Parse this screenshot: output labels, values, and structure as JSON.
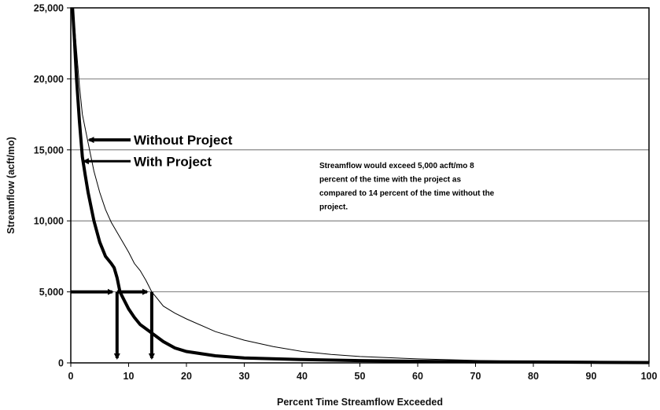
{
  "chart_data": {
    "type": "line",
    "title": "",
    "xlabel": "Percent Time Streamflow Exceeded",
    "ylabel": "Streamflow (acft/mo)",
    "xlim": [
      0,
      100
    ],
    "ylim": [
      0,
      25000
    ],
    "x_ticks": [
      "0",
      "10",
      "20",
      "30",
      "40",
      "50",
      "60",
      "70",
      "80",
      "90",
      "100"
    ],
    "y_ticks": [
      "0",
      "5,000",
      "10,000",
      "15,000",
      "20,000",
      "25,000"
    ],
    "grid": "horizontal",
    "series": [
      {
        "name": "Without Project",
        "x": [
          0.3,
          0.6,
          1,
          1.5,
          2,
          3,
          4,
          5,
          6,
          7,
          8,
          9,
          10,
          11,
          12,
          13,
          14,
          15,
          16,
          18,
          20,
          25,
          30,
          35,
          40,
          45,
          50,
          60,
          70,
          80,
          90,
          100
        ],
        "y": [
          25000,
          24000,
          22000,
          19500,
          17500,
          15500,
          13500,
          12000,
          10800,
          9900,
          9200,
          8500,
          7800,
          7000,
          6500,
          5800,
          5000,
          4500,
          4000,
          3500,
          3100,
          2200,
          1600,
          1150,
          800,
          600,
          450,
          280,
          170,
          100,
          60,
          30
        ]
      },
      {
        "name": "With Project",
        "x": [
          0.3,
          0.6,
          1,
          1.5,
          2,
          2.5,
          3,
          3.5,
          4,
          5,
          6,
          7,
          7.5,
          8,
          8.5,
          9,
          10,
          11,
          12,
          13,
          14,
          15,
          16,
          18,
          20,
          25,
          30,
          40,
          50,
          60,
          70,
          80,
          90,
          100
        ],
        "y": [
          25000,
          23000,
          20000,
          17000,
          14500,
          13200,
          12000,
          11000,
          10000,
          8500,
          7500,
          7000,
          6700,
          6000,
          5000,
          4600,
          3800,
          3200,
          2700,
          2400,
          2100,
          1800,
          1500,
          1050,
          800,
          500,
          350,
          230,
          160,
          110,
          80,
          60,
          40,
          20
        ]
      }
    ],
    "annotations": {
      "without_label": "Without Project",
      "with_label": "With Project",
      "note_lines": [
        "Streamflow would exceed 5,000 acft/mo 8",
        "percent of the time with the project as",
        "compared to 14 percent of the time without the",
        "project."
      ],
      "threshold_y": 5000,
      "with_x": 8,
      "without_x": 14
    }
  }
}
